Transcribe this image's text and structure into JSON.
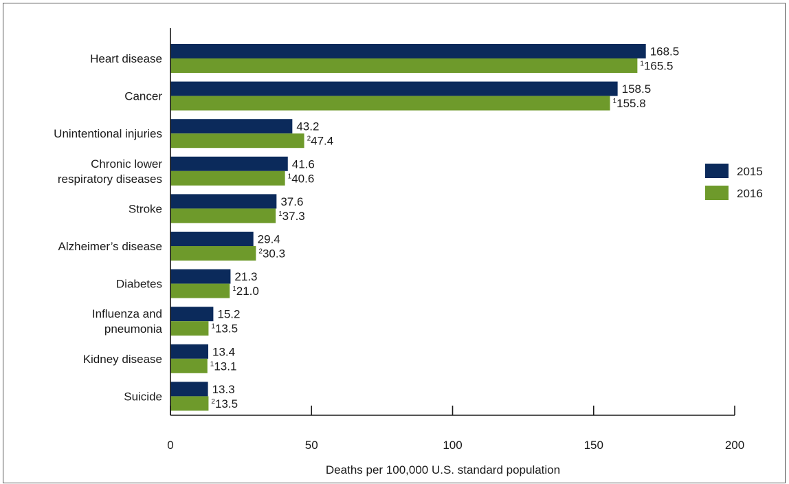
{
  "chart_data": {
    "type": "bar",
    "orientation": "horizontal",
    "categories": [
      [
        "Heart disease"
      ],
      [
        "Cancer"
      ],
      [
        "Unintentional injuries"
      ],
      [
        "Chronic lower",
        "respiratory diseases"
      ],
      [
        "Stroke"
      ],
      [
        "Alzheimer’s disease"
      ],
      [
        "Diabetes"
      ],
      [
        "Influenza and",
        "pneumonia"
      ],
      [
        "Kidney disease"
      ],
      [
        "Suicide"
      ]
    ],
    "series": [
      {
        "name": "2015",
        "color": "#0b2a5b",
        "values": [
          168.5,
          158.5,
          43.2,
          41.6,
          37.6,
          29.4,
          21.3,
          15.2,
          13.4,
          13.3
        ],
        "labels": [
          "168.5",
          "158.5",
          "43.2",
          "41.6",
          "37.6",
          "29.4",
          "21.3",
          "15.2",
          "13.4",
          "13.3"
        ],
        "footnotes": [
          "",
          "",
          "",
          "",
          "",
          "",
          "",
          "",
          "",
          ""
        ]
      },
      {
        "name": "2016",
        "color": "#6e9a2b",
        "values": [
          165.5,
          155.8,
          47.4,
          40.6,
          37.3,
          30.3,
          21.0,
          13.5,
          13.1,
          13.5
        ],
        "labels": [
          "165.5",
          "155.8",
          "47.4",
          "40.6",
          "37.3",
          "30.3",
          "21.0",
          "13.5",
          "13.1",
          "13.5"
        ],
        "footnotes": [
          "1",
          "1",
          "2",
          "1",
          "1",
          "2",
          "1",
          "1",
          "1",
          "2"
        ]
      }
    ],
    "xlabel": "Deaths per 100,000 U.S. standard population",
    "xlim": [
      0,
      200
    ],
    "xticks": [
      0,
      50,
      100,
      150,
      200
    ],
    "grid": false,
    "legend_position": "right"
  }
}
